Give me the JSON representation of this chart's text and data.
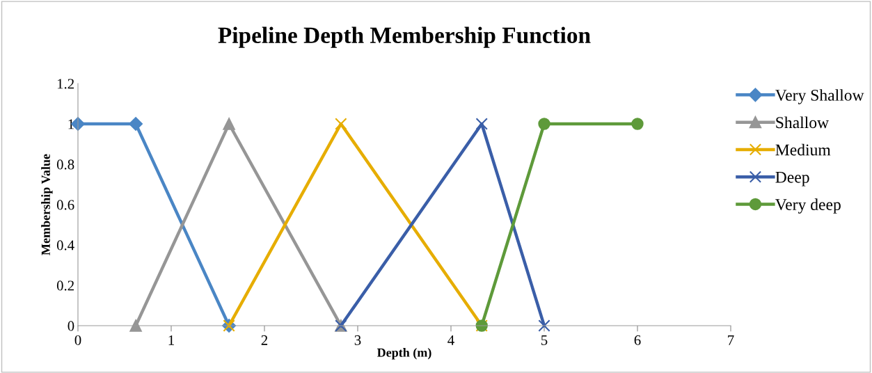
{
  "chart_data": {
    "type": "line",
    "title": "Pipeline Depth Membership Function",
    "xlabel": "Depth (m)",
    "ylabel": "Membership Value",
    "xlim": [
      0,
      7
    ],
    "xticks": [
      0,
      1,
      2,
      3,
      4,
      5,
      6,
      7
    ],
    "ylim": [
      0,
      1.2
    ],
    "yticks": [
      0,
      0.2,
      0.4,
      0.6,
      0.8,
      1,
      1.2
    ],
    "grid": false,
    "legend": "right",
    "series": [
      {
        "name": "Very Shallow",
        "color": "#4a86c5",
        "marker": "diamond",
        "x": [
          0,
          0.62,
          1.62
        ],
        "values": [
          1,
          1,
          0
        ]
      },
      {
        "name": "Shallow",
        "color": "#969696",
        "marker": "triangle",
        "x": [
          0.62,
          1.62,
          2.82
        ],
        "values": [
          0,
          1,
          0
        ]
      },
      {
        "name": "Medium",
        "color": "#e6ad00",
        "marker": "cross",
        "x": [
          1.62,
          2.82,
          4.33
        ],
        "values": [
          0,
          1,
          0
        ]
      },
      {
        "name": "Deep",
        "color": "#3a5ea8",
        "marker": "cross",
        "x": [
          2.82,
          4.33,
          5
        ],
        "values": [
          0,
          1,
          0
        ]
      },
      {
        "name": "Very deep",
        "color": "#5e9a3a",
        "marker": "circle",
        "x": [
          4.33,
          5,
          6
        ],
        "values": [
          0,
          1,
          1
        ]
      }
    ]
  }
}
